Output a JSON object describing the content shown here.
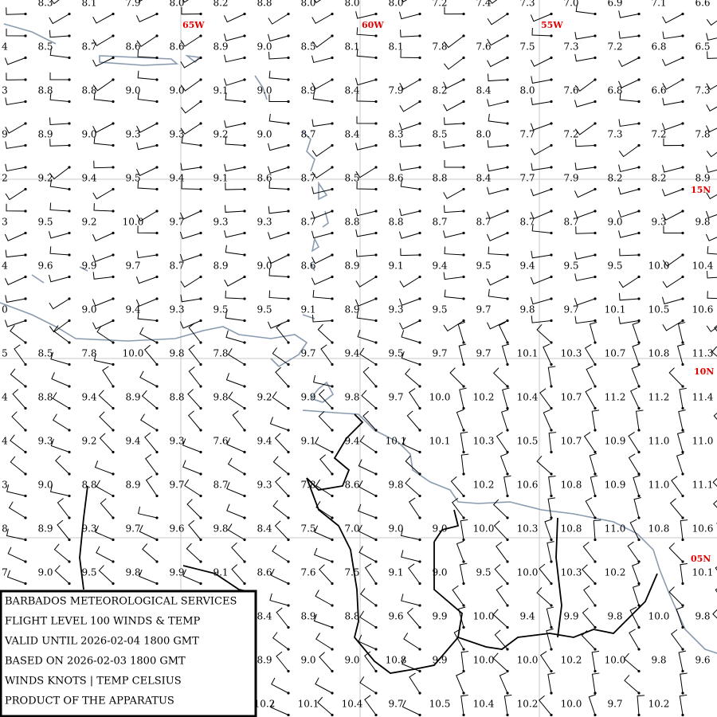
{
  "map": {
    "meridian_labels": [
      "65W",
      "60W",
      "55W"
    ],
    "parallel_labels": [
      "15N",
      "10N",
      "05N"
    ],
    "left_edge": [
      null,
      "4",
      "3",
      "9",
      "2",
      "3",
      "4",
      "0",
      "5",
      "4",
      "4",
      "3",
      "8",
      "7",
      null,
      null,
      null
    ],
    "rows": [
      [
        "8.3",
        "8.1",
        "7.9",
        "8.0",
        "8.2",
        "8.8",
        "8.0",
        "8.0",
        "8.0",
        "7.2",
        "7.4",
        "7.3",
        "7.0",
        "6.9",
        "7.1",
        "6.6"
      ],
      [
        "8.5",
        "8.7",
        "8.6",
        "8.6",
        "8.9",
        "9.0",
        "8.5",
        "8.1",
        "8.1",
        "7.8",
        "7.6",
        "7.5",
        "7.3",
        "7.2",
        "6.8",
        "6.5"
      ],
      [
        "8.8",
        "8.8",
        "9.0",
        "9.0",
        "9.1",
        "9.0",
        "8.9",
        "8.4",
        "7.9",
        "8.2",
        "8.4",
        "8.0",
        "7.6",
        "6.8",
        "6.6",
        "7.3"
      ],
      [
        "8.9",
        "9.0",
        "9.3",
        "9.3",
        "9.2",
        "9.0",
        "8.7",
        "8.4",
        "8.3",
        "8.5",
        "8.0",
        "7.7",
        "7.2",
        "7.3",
        "7.2",
        "7.8"
      ],
      [
        "9.2",
        "9.4",
        "9.5",
        "9.4",
        "9.1",
        "8.6",
        "8.7",
        "8.5",
        "8.6",
        "8.8",
        "8.4",
        "7.7",
        "7.9",
        "8.2",
        "8.2",
        "8.9"
      ],
      [
        "9.5",
        "9.2",
        "10.0",
        "9.7",
        "9.3",
        "9.3",
        "8.7",
        "8.8",
        "8.8",
        "8.7",
        "8.7",
        "8.7",
        "8.7",
        "9.0",
        "9.3",
        "9.8"
      ],
      [
        "9.6",
        "9.9",
        "9.7",
        "8.7",
        "8.9",
        "9.0",
        "8.6",
        "8.9",
        "9.1",
        "9.4",
        "9.5",
        "9.4",
        "9.5",
        "9.5",
        "10.0",
        "10.4"
      ],
      [
        null,
        "9.0",
        "9.4",
        "9.3",
        "9.5",
        "9.5",
        "9.1",
        "8.9",
        "9.3",
        "9.5",
        "9.7",
        "9.8",
        "9.7",
        "10.1",
        "10.5",
        "10.6"
      ],
      [
        "8.5",
        "7.8",
        "10.0",
        "9.8",
        "7.8",
        null,
        "9.7",
        "9.4",
        "9.5",
        "9.7",
        "9.7",
        "10.1",
        "10.3",
        "10.7",
        "10.8",
        "11.3"
      ],
      [
        "8.8",
        "9.4",
        "8.9",
        "8.8",
        "9.8",
        "9.2",
        "9.9",
        "9.8",
        "9.7",
        "10.0",
        "10.2",
        "10.4",
        "10.7",
        "11.2",
        "11.2",
        "11.4"
      ],
      [
        "9.3",
        "9.2",
        "9.4",
        "9.3",
        "7.6",
        "9.4",
        "9.1",
        "9.4",
        "10.1",
        "10.1",
        "10.3",
        "10.5",
        "10.7",
        "10.9",
        "11.0",
        "11.0"
      ],
      [
        "9.0",
        "8.8",
        "8.9",
        "9.7",
        "8.7",
        "9.3",
        "7.8",
        "8.6",
        "9.8",
        null,
        "10.2",
        "10.6",
        "10.8",
        "10.9",
        "11.0",
        "11.1"
      ],
      [
        "8.9",
        "9.3",
        "9.7",
        "9.6",
        "9.8",
        "8.4",
        "7.5",
        "7.0",
        "9.0",
        "9.0",
        "10.0",
        "10.3",
        "10.8",
        "11.0",
        "10.8",
        "10.6"
      ],
      [
        "9.0",
        "9.5",
        "9.8",
        "9.9",
        "9.1",
        "8.6",
        "7.6",
        "7.5",
        "9.1",
        "9.0",
        "9.5",
        "10.0",
        "10.3",
        "10.2",
        null,
        "10.1"
      ],
      [
        null,
        null,
        null,
        null,
        null,
        "8.4",
        "8.9",
        "8.8",
        "9.6",
        "9.9",
        "10.0",
        "9.4",
        "9.9",
        "9.8",
        "10.0",
        "9.8"
      ],
      [
        null,
        null,
        null,
        null,
        null,
        "8.9",
        "9.0",
        "9.0",
        "10.8",
        "9.9",
        "10.0",
        "10.0",
        "10.2",
        "10.0",
        "9.8",
        "9.6"
      ],
      [
        null,
        null,
        null,
        null,
        null,
        "10.2",
        "10.1",
        "10.4",
        "9.7",
        "10.5",
        "10.4",
        "10.2",
        "10.0",
        "9.7",
        "10.2",
        null
      ]
    ]
  },
  "legend": {
    "lines": [
      "BARBADOS METEOROLOGICAL SERVICES",
      "FLIGHT LEVEL 100 WINDS & TEMP",
      "VALID UNTIL 2026-02-04 1800 GMT",
      "BASED ON 2026-02-03 1800 GMT",
      "WINDS KNOTS | TEMP CELSIUS",
      "PRODUCT OF THE APPARATUS"
    ]
  }
}
